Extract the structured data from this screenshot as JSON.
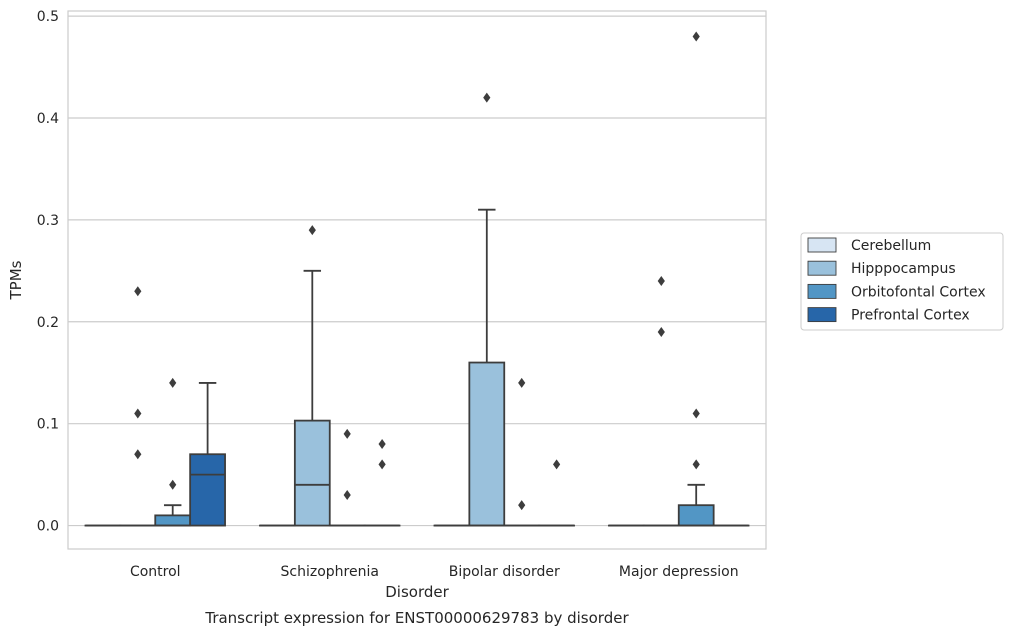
{
  "chart_data": {
    "type": "box",
    "title": "",
    "caption": "Transcript expression for ENST00000629783 by disorder",
    "xlabel": "Disorder",
    "ylabel": "TPMs",
    "ylim": [
      -0.023,
      0.505
    ],
    "yticks": [
      0.0,
      0.1,
      0.2,
      0.3,
      0.4,
      0.5
    ],
    "ytick_labels": [
      "0.0",
      "0.1",
      "0.2",
      "0.3",
      "0.4",
      "0.5"
    ],
    "grid": "horizontal",
    "legend_position": "right",
    "categories": [
      "Control",
      "Schizophrenia",
      "Bipolar disorder",
      "Major depression"
    ],
    "series": [
      {
        "name": "Cerebellum",
        "color": "#d7e5f3",
        "boxes": [
          {
            "q1": 0,
            "median": 0,
            "q3": 0,
            "whislo": 0,
            "whishi": 0,
            "fliers": []
          },
          {
            "q1": 0,
            "median": 0,
            "q3": 0,
            "whislo": 0,
            "whishi": 0,
            "fliers": []
          },
          {
            "q1": 0,
            "median": 0,
            "q3": 0,
            "whislo": 0,
            "whishi": 0,
            "fliers": []
          },
          {
            "q1": 0,
            "median": 0,
            "q3": 0,
            "whislo": 0,
            "whishi": 0,
            "fliers": []
          }
        ]
      },
      {
        "name": "Hipppocampus",
        "color": "#9ac1dc",
        "boxes": [
          {
            "q1": 0,
            "median": 0,
            "q3": 0,
            "whislo": 0,
            "whishi": 0,
            "fliers": [
              0.07,
              0.11,
              0.23
            ]
          },
          {
            "q1": 0,
            "median": 0.04,
            "q3": 0.103,
            "whislo": 0,
            "whishi": 0.25,
            "fliers": [
              0.29
            ]
          },
          {
            "q1": 0,
            "median": 0,
            "q3": 0.16,
            "whislo": 0,
            "whishi": 0.31,
            "fliers": [
              0.42
            ]
          },
          {
            "q1": 0,
            "median": 0,
            "q3": 0,
            "whislo": 0,
            "whishi": 0,
            "fliers": [
              0.19,
              0.24
            ]
          }
        ]
      },
      {
        "name": "Orbitofontal Cortex",
        "color": "#5296c5",
        "boxes": [
          {
            "q1": 0,
            "median": 0,
            "q3": 0.01,
            "whislo": 0,
            "whishi": 0.02,
            "fliers": [
              0.04,
              0.14
            ]
          },
          {
            "q1": 0,
            "median": 0,
            "q3": 0,
            "whislo": 0,
            "whishi": 0,
            "fliers": [
              0.03,
              0.09
            ]
          },
          {
            "q1": 0,
            "median": 0,
            "q3": 0,
            "whislo": 0,
            "whishi": 0,
            "fliers": [
              0.02,
              0.14
            ]
          },
          {
            "q1": 0,
            "median": 0,
            "q3": 0.02,
            "whislo": 0,
            "whishi": 0.04,
            "fliers": [
              0.06,
              0.11,
              0.48
            ]
          }
        ]
      },
      {
        "name": "Prefrontal Cortex",
        "color": "#2766a9",
        "boxes": [
          {
            "q1": 0,
            "median": 0.05,
            "q3": 0.07,
            "whislo": 0,
            "whishi": 0.14,
            "fliers": []
          },
          {
            "q1": 0,
            "median": 0,
            "q3": 0,
            "whislo": 0,
            "whishi": 0,
            "fliers": [
              0.06,
              0.08
            ]
          },
          {
            "q1": 0,
            "median": 0,
            "q3": 0,
            "whislo": 0,
            "whishi": 0,
            "fliers": [
              0.06
            ]
          },
          {
            "q1": 0,
            "median": 0,
            "q3": 0,
            "whislo": 0,
            "whishi": 0,
            "fliers": []
          }
        ]
      }
    ]
  }
}
